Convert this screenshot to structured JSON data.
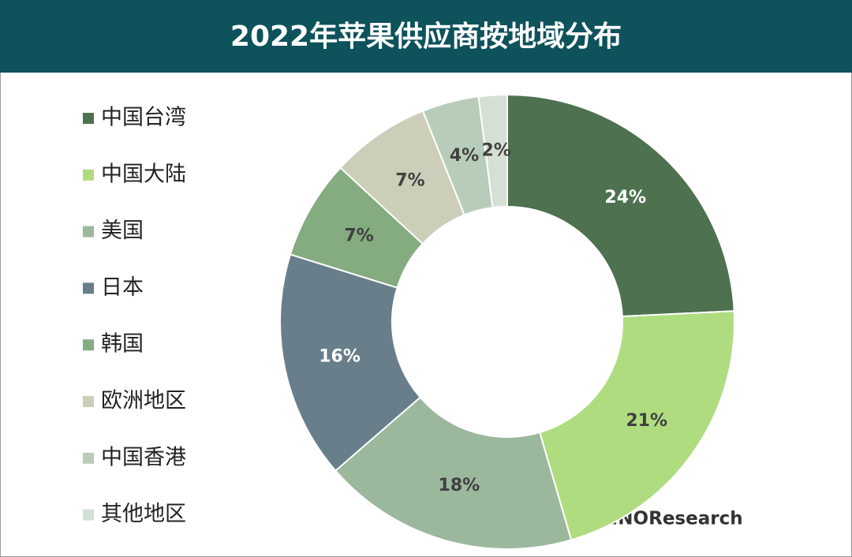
{
  "chart_data": {
    "type": "donut",
    "title": "2022年苹果供应商按地域分布",
    "categories": [
      "中国台湾",
      "中国大陆",
      "美国",
      "日本",
      "韩国",
      "欧洲地区",
      "中国香港",
      "其他地区"
    ],
    "values": [
      24,
      21,
      18,
      16,
      7,
      7,
      4,
      2
    ],
    "value_labels": [
      "24%",
      "21%",
      "18%",
      "16%",
      "7%",
      "7%",
      "4%",
      "2%"
    ],
    "colors": [
      "#4e7150",
      "#b0dc80",
      "#9bb79c",
      "#687f8b",
      "#85ab80",
      "#cbceb8",
      "#b8cdb9",
      "#d3e0d3"
    ],
    "legend": "left",
    "annotation": "Copyright©CINNOResearch"
  }
}
